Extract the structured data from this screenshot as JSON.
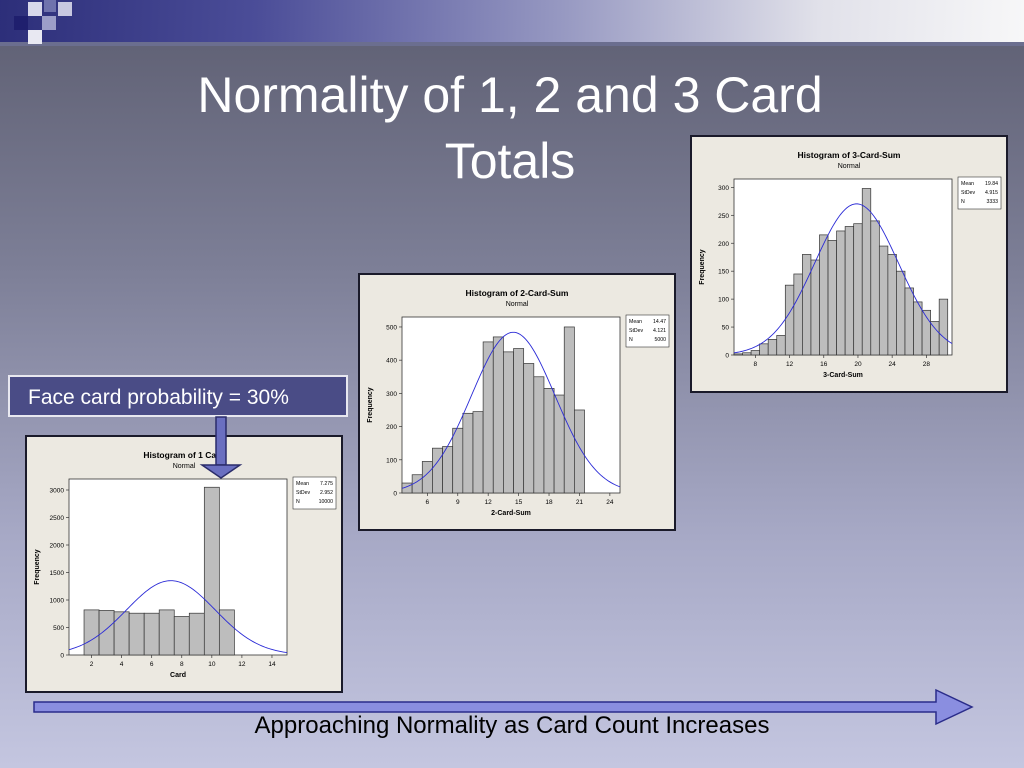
{
  "slide": {
    "title_line1": "Normality of 1, 2 and 3 Card",
    "title_line2": "Totals",
    "callout": "Face card probability = 30%",
    "bottom_label": "Approaching Normality as Card Count Increases"
  },
  "colors": {
    "bar_fill": "#bdbdbd",
    "curve": "#2b2bd6",
    "panel_bg": "#ece9e1",
    "callout_bg": "#4a4c86",
    "arrow_fill": "#8a8ee0"
  },
  "chart_data": [
    {
      "id": "chart1",
      "type": "bar",
      "title": "Histogram of 1 Card",
      "subtitle": "Normal",
      "xlabel": "Card",
      "ylabel": "Frequency",
      "x": [
        2,
        3,
        4,
        5,
        6,
        7,
        8,
        9,
        10,
        11
      ],
      "values": [
        820,
        810,
        785,
        760,
        760,
        820,
        700,
        760,
        3050,
        820
      ],
      "xlim": [
        0.5,
        15
      ],
      "ylim": [
        0,
        3200
      ],
      "xticks": [
        2,
        4,
        6,
        8,
        10,
        12,
        14
      ],
      "yticks": [
        0,
        500,
        1000,
        1500,
        2000,
        2500,
        3000
      ],
      "stats": {
        "mean_label": "Mean",
        "mean": "7.275",
        "sd_label": "StDev",
        "sd": "2.952",
        "n_label": "N",
        "n": "10000"
      },
      "normal_curve": {
        "mean": 7.275,
        "sd": 2.952,
        "n": 10000,
        "binwidth": 1
      },
      "grid": false,
      "legend_position": "top-right"
    },
    {
      "id": "chart2",
      "type": "bar",
      "title": "Histogram of 2-Card-Sum",
      "subtitle": "Normal",
      "xlabel": "2-Card-Sum",
      "ylabel": "Frequency",
      "x": [
        4,
        5,
        6,
        7,
        8,
        9,
        10,
        11,
        12,
        13,
        14,
        15,
        16,
        17,
        18,
        19,
        20,
        21
      ],
      "values": [
        30,
        55,
        95,
        135,
        140,
        195,
        240,
        245,
        455,
        470,
        425,
        435,
        390,
        350,
        315,
        295,
        500,
        250
      ],
      "xlim": [
        3.5,
        25
      ],
      "ylim": [
        0,
        530
      ],
      "xticks": [
        6,
        9,
        12,
        15,
        18,
        21,
        24
      ],
      "yticks": [
        0,
        100,
        200,
        300,
        400,
        500
      ],
      "stats": {
        "mean_label": "Mean",
        "mean": "14.47",
        "sd_label": "StDev",
        "sd": "4.121",
        "n_label": "N",
        "n": "5000"
      },
      "normal_curve": {
        "mean": 14.47,
        "sd": 4.121,
        "n": 5000,
        "binwidth": 1
      },
      "grid": false,
      "legend_position": "top-right"
    },
    {
      "id": "chart3",
      "type": "bar",
      "title": "Histogram of 3-Card-Sum",
      "subtitle": "Normal",
      "xlabel": "3-Card-Sum",
      "ylabel": "Frequency",
      "x": [
        6,
        7,
        8,
        9,
        10,
        11,
        12,
        13,
        14,
        15,
        16,
        17,
        18,
        19,
        20,
        21,
        22,
        23,
        24,
        25,
        26,
        27,
        28,
        29,
        30
      ],
      "values": [
        2,
        4,
        8,
        20,
        28,
        35,
        125,
        145,
        180,
        170,
        215,
        205,
        222,
        230,
        235,
        298,
        240,
        195,
        180,
        150,
        120,
        95,
        80,
        60,
        100
      ],
      "xlim": [
        5.5,
        31
      ],
      "ylim": [
        0,
        315
      ],
      "xticks": [
        8,
        12,
        16,
        20,
        24,
        28
      ],
      "yticks": [
        0,
        50,
        100,
        150,
        200,
        250,
        300
      ],
      "stats": {
        "mean_label": "Mean",
        "mean": "19.84",
        "sd_label": "StDev",
        "sd": "4.915",
        "n_label": "N",
        "n": "3333"
      },
      "normal_curve": {
        "mean": 19.84,
        "sd": 4.915,
        "n": 3333,
        "binwidth": 1
      },
      "grid": false,
      "legend_position": "top-right"
    }
  ]
}
